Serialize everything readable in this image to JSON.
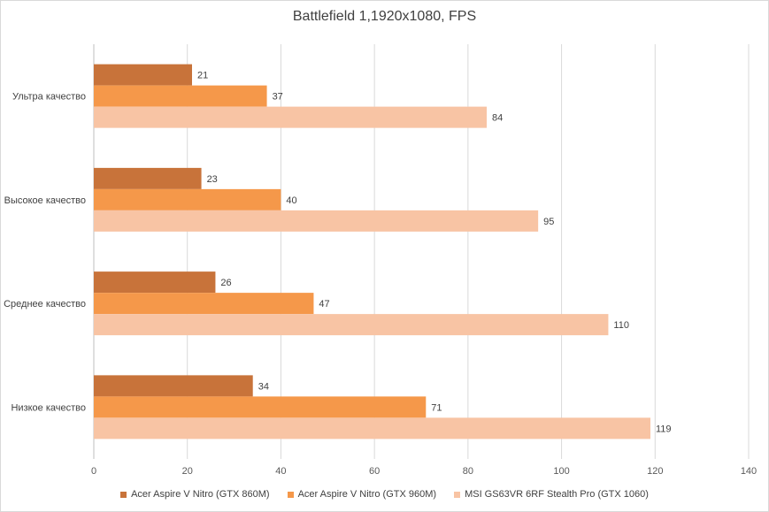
{
  "chart_data": {
    "type": "bar",
    "orientation": "horizontal",
    "title": "Battlefield 1,1920x1080, FPS",
    "categories": [
      "Ультра качество",
      "Высокое качество",
      "Среднее качество",
      "Низкое качество"
    ],
    "series": [
      {
        "name": "Acer Aspire V Nitro (GTX 860M)",
        "color": "#c8733a",
        "values": [
          21,
          23,
          26,
          34
        ]
      },
      {
        "name": "Acer Aspire V Nitro (GTX 960M)",
        "color": "#f5984a",
        "values": [
          37,
          40,
          47,
          71
        ]
      },
      {
        "name": "MSI GS63VR 6RF Stealth Pro (GTX 1060)",
        "color": "#f8c4a4",
        "values": [
          84,
          95,
          110,
          119
        ]
      }
    ],
    "xlim": [
      0,
      140
    ],
    "xticks": [
      0,
      20,
      40,
      60,
      80,
      100,
      120,
      140
    ],
    "grid": "vertical",
    "legend": "bottom",
    "data_labels": true
  }
}
